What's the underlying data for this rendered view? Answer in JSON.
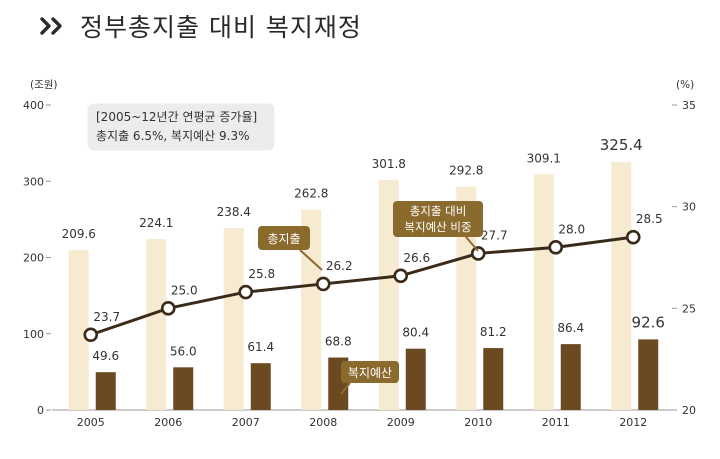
{
  "title": "정부총지출 대비 복지재정",
  "chart_data": {
    "type": "bar",
    "categories": [
      "2005",
      "2006",
      "2007",
      "2008",
      "2009",
      "2010",
      "2011",
      "2012"
    ],
    "series": [
      {
        "name": "총지출",
        "type": "bar",
        "axis": "left",
        "color": "#f6ead0",
        "values": [
          209.6,
          224.1,
          238.4,
          262.8,
          301.8,
          292.8,
          309.1,
          325.4
        ]
      },
      {
        "name": "복지예산",
        "type": "bar",
        "axis": "left",
        "color": "#6b4a22",
        "values": [
          49.6,
          56.0,
          61.4,
          68.8,
          80.4,
          81.2,
          86.4,
          92.6
        ]
      },
      {
        "name": "총지출 대비 복지예산 비중",
        "type": "line",
        "axis": "right",
        "color": "#3a2a1a",
        "values": [
          23.7,
          25.0,
          25.8,
          26.2,
          26.6,
          27.7,
          28.0,
          28.5
        ]
      }
    ],
    "total_labels": [
      "209.6",
      "224.1",
      "238.4",
      "262.8",
      "301.8",
      "292.8",
      "309.1",
      "325.4"
    ],
    "welfare_labels": [
      "49.6",
      "56.0",
      "61.4",
      "68.8",
      "80.4",
      "81.2",
      "86.4",
      "92.6"
    ],
    "ratio_labels": [
      "23.7",
      "25.0",
      "25.8",
      "26.2",
      "26.6",
      "27.7",
      "28.0",
      "28.5"
    ],
    "y_left": {
      "label": "(조원)",
      "min": 0,
      "max": 400,
      "ticks": [
        0,
        100,
        200,
        300,
        400
      ],
      "tick_labels": [
        "0",
        "100",
        "200",
        "300",
        "400"
      ]
    },
    "y_right": {
      "label": "(%)",
      "min": 20,
      "max": 35,
      "ticks": [
        20,
        25,
        30,
        35
      ],
      "tick_labels": [
        "20",
        "25",
        "30",
        "35"
      ]
    },
    "callouts": {
      "total": "총지출",
      "ratio_line1": "총지출 대비",
      "ratio_line2": "복지예산 비중",
      "welfare": "복지예산"
    },
    "info_box": {
      "line1": "[2005~12년간 연평균 증가율]",
      "line2": "총지출 6.5%, 복지예산 9.3%"
    },
    "grid": false,
    "colors": {
      "callout": "#8b6a2e",
      "accent": "#5a3e1f"
    }
  }
}
